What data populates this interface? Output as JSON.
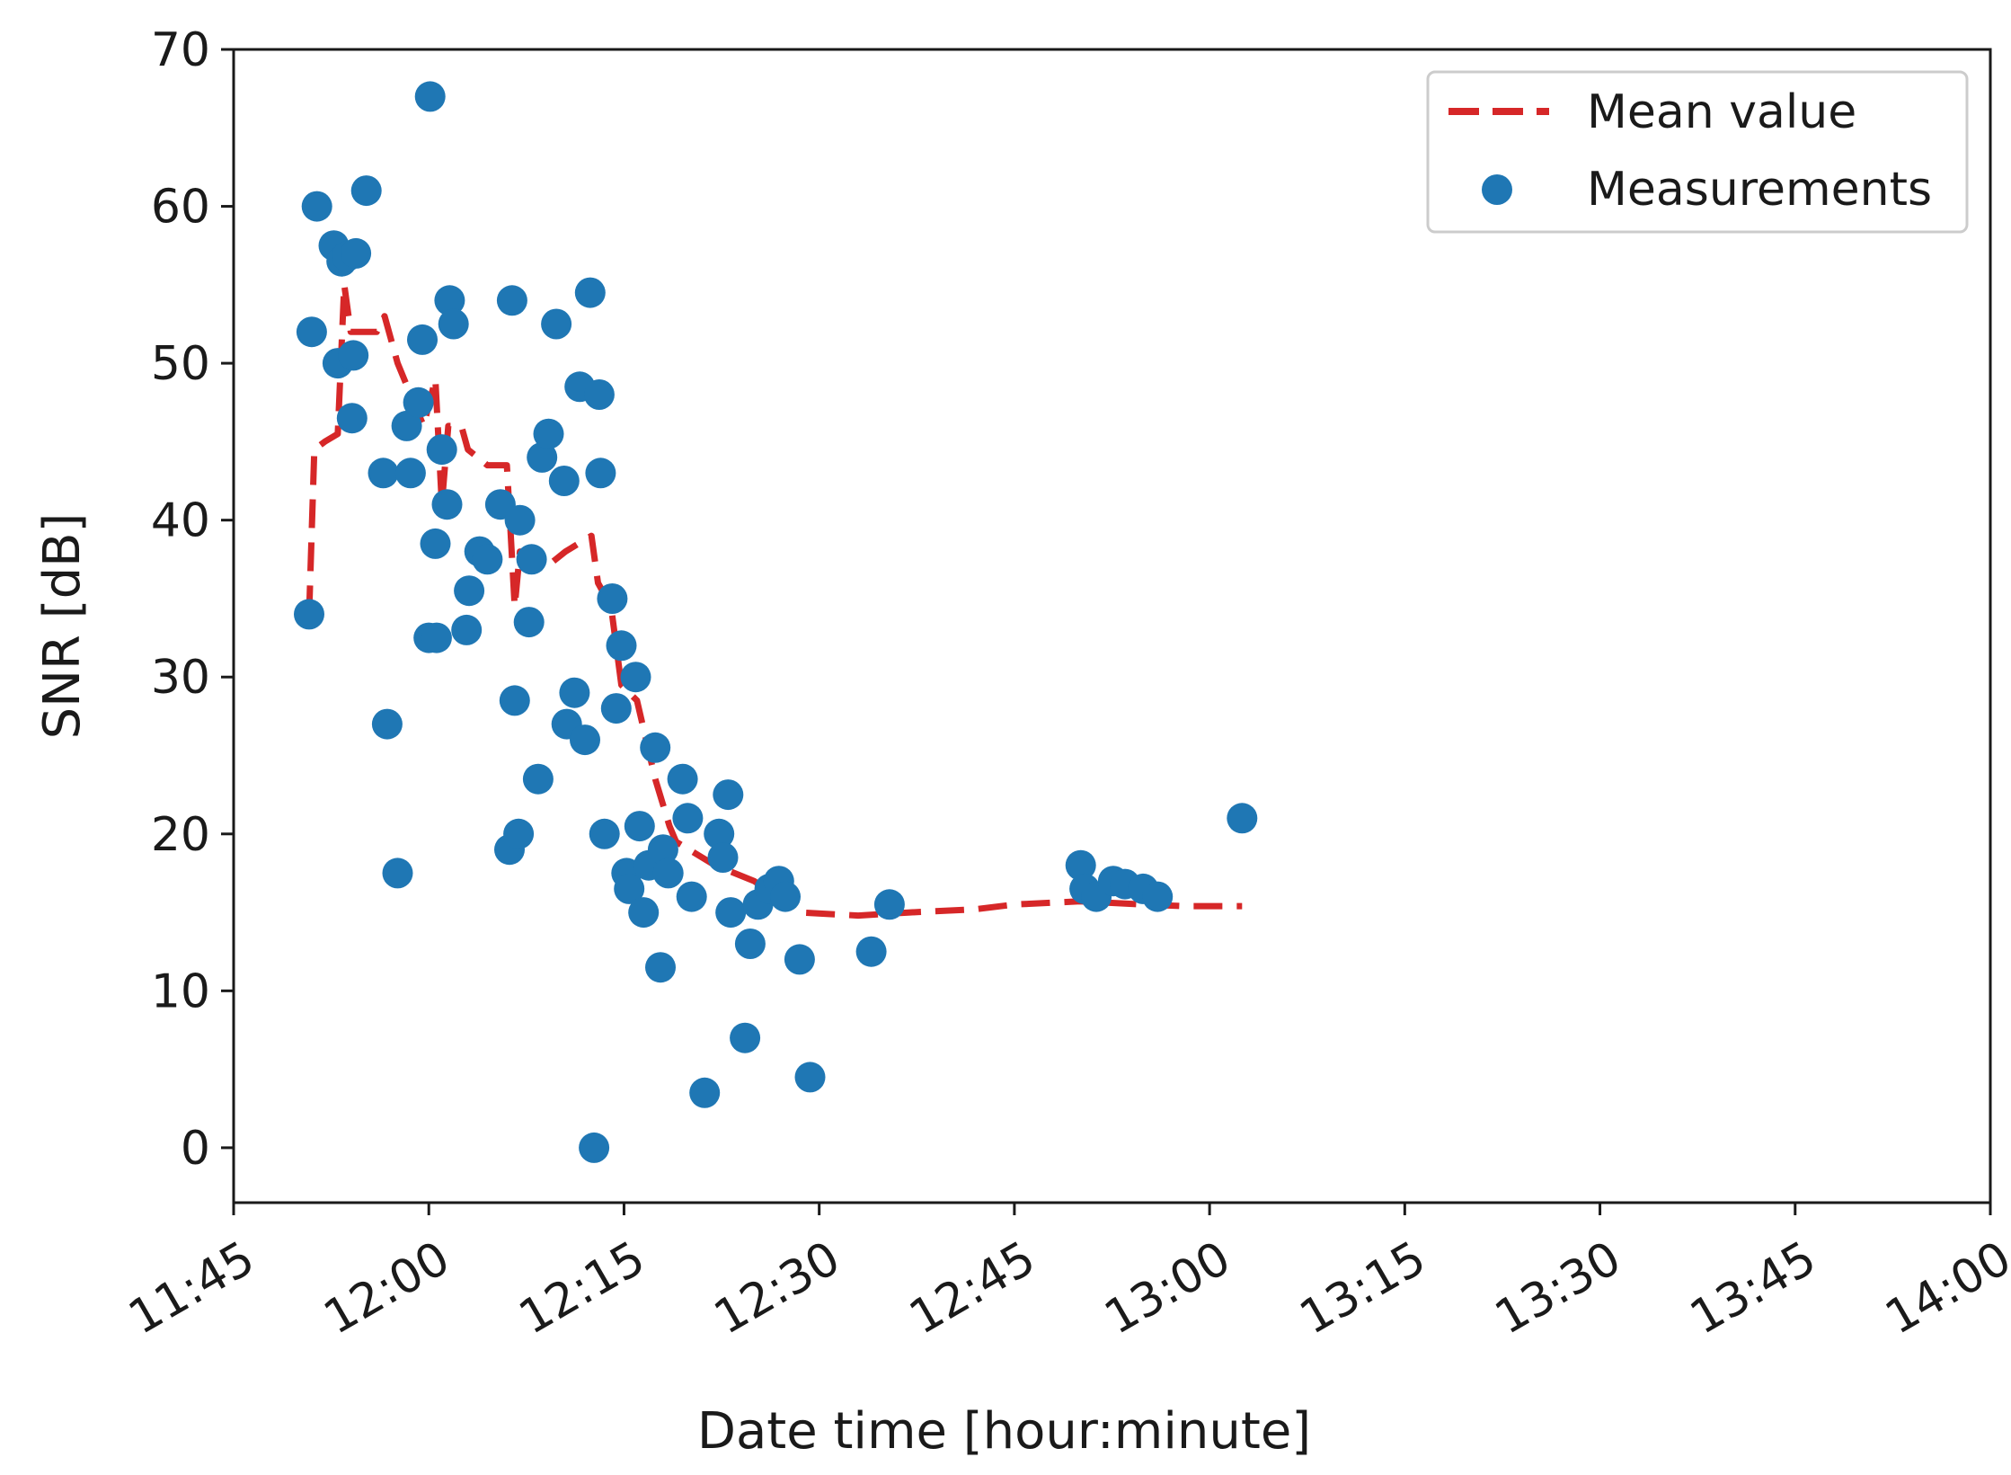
{
  "chart_data": {
    "type": "scatter",
    "title": "",
    "xlabel": "Date time [hour:minute]",
    "ylabel": "SNR [dB]",
    "x_units": "minutes since 11:45",
    "xlim": [
      0,
      135
    ],
    "ylim": [
      -3.5,
      70
    ],
    "x_ticks": [
      {
        "value": 0,
        "label": "11:45"
      },
      {
        "value": 15,
        "label": "12:00"
      },
      {
        "value": 30,
        "label": "12:15"
      },
      {
        "value": 45,
        "label": "12:30"
      },
      {
        "value": 60,
        "label": "12:45"
      },
      {
        "value": 75,
        "label": "13:00"
      },
      {
        "value": 90,
        "label": "13:15"
      },
      {
        "value": 105,
        "label": "13:30"
      },
      {
        "value": 120,
        "label": "13:45"
      },
      {
        "value": 135,
        "label": "14:00"
      }
    ],
    "y_ticks": [
      {
        "value": 0,
        "label": "0"
      },
      {
        "value": 10,
        "label": "10"
      },
      {
        "value": 20,
        "label": "20"
      },
      {
        "value": 30,
        "label": "30"
      },
      {
        "value": 40,
        "label": "40"
      },
      {
        "value": 50,
        "label": "50"
      },
      {
        "value": 60,
        "label": "60"
      },
      {
        "value": 70,
        "label": "70"
      }
    ],
    "legend": {
      "placement": "top-right",
      "entries": [
        {
          "label": "Mean value",
          "style": "dashed-line",
          "color": "#d62728"
        },
        {
          "label": "Measurements",
          "style": "marker",
          "color": "#1f77b4"
        }
      ]
    },
    "series": [
      {
        "name": "Measurements",
        "kind": "scatter",
        "color": "#1f77b4",
        "points": [
          [
            5.8,
            34
          ],
          [
            6.0,
            52
          ],
          [
            6.4,
            60
          ],
          [
            7.7,
            57.5
          ],
          [
            8.0,
            50
          ],
          [
            8.3,
            56.5
          ],
          [
            8.7,
            56.8
          ],
          [
            9.1,
            46.5
          ],
          [
            9.2,
            50.5
          ],
          [
            9.4,
            57
          ],
          [
            10.2,
            61
          ],
          [
            11.5,
            43
          ],
          [
            11.8,
            27
          ],
          [
            12.6,
            17.5
          ],
          [
            13.3,
            46
          ],
          [
            13.6,
            43
          ],
          [
            14.2,
            47.5
          ],
          [
            14.5,
            51.5
          ],
          [
            15.0,
            32.5
          ],
          [
            15.1,
            67
          ],
          [
            15.5,
            38.5
          ],
          [
            15.6,
            32.5
          ],
          [
            16.0,
            44.5
          ],
          [
            16.4,
            41
          ],
          [
            16.6,
            54
          ],
          [
            16.9,
            52.5
          ],
          [
            17.9,
            33
          ],
          [
            18.1,
            35.5
          ],
          [
            18.9,
            38
          ],
          [
            19.5,
            37.5
          ],
          [
            20.5,
            41
          ],
          [
            21.2,
            19
          ],
          [
            21.4,
            54
          ],
          [
            21.6,
            28.5
          ],
          [
            21.9,
            20
          ],
          [
            22.0,
            40
          ],
          [
            22.7,
            33.5
          ],
          [
            22.9,
            37.5
          ],
          [
            23.4,
            23.5
          ],
          [
            23.7,
            44
          ],
          [
            24.2,
            45.5
          ],
          [
            24.8,
            52.5
          ],
          [
            25.4,
            42.5
          ],
          [
            25.6,
            27
          ],
          [
            26.2,
            29
          ],
          [
            26.6,
            48.5
          ],
          [
            27.0,
            26
          ],
          [
            27.4,
            54.5
          ],
          [
            27.7,
            0
          ],
          [
            28.1,
            48
          ],
          [
            28.2,
            43
          ],
          [
            28.5,
            20
          ],
          [
            29.1,
            35
          ],
          [
            29.4,
            28
          ],
          [
            29.8,
            32
          ],
          [
            30.2,
            17.5
          ],
          [
            30.4,
            16.5
          ],
          [
            30.9,
            30
          ],
          [
            31.2,
            20.5
          ],
          [
            31.5,
            15
          ],
          [
            31.9,
            18
          ],
          [
            32.4,
            25.5
          ],
          [
            32.8,
            11.5
          ],
          [
            33.0,
            19
          ],
          [
            33.4,
            17.5
          ],
          [
            34.5,
            23.5
          ],
          [
            34.9,
            21
          ],
          [
            35.2,
            16
          ],
          [
            36.2,
            3.5
          ],
          [
            37.3,
            20
          ],
          [
            37.6,
            18.5
          ],
          [
            38.0,
            22.5
          ],
          [
            38.2,
            15
          ],
          [
            39.3,
            7
          ],
          [
            39.7,
            13
          ],
          [
            40.3,
            15.5
          ],
          [
            41.2,
            16.5
          ],
          [
            41.9,
            17
          ],
          [
            42.4,
            16
          ],
          [
            43.5,
            12
          ],
          [
            44.3,
            4.5
          ],
          [
            49.0,
            12.5
          ],
          [
            50.4,
            15.5
          ],
          [
            65.1,
            18
          ],
          [
            65.4,
            16.5
          ],
          [
            66.3,
            16
          ],
          [
            67.6,
            17
          ],
          [
            68.5,
            16.8
          ],
          [
            69.9,
            16.5
          ],
          [
            71.0,
            16
          ],
          [
            77.5,
            21
          ]
        ]
      },
      {
        "name": "Mean value",
        "kind": "line",
        "style": "dashed",
        "color": "#d62728",
        "points": [
          [
            5.8,
            34
          ],
          [
            6.2,
            44.5
          ],
          [
            7.0,
            45
          ],
          [
            8.0,
            45.5
          ],
          [
            8.5,
            55
          ],
          [
            9.0,
            52
          ],
          [
            11.0,
            52
          ],
          [
            11.6,
            53
          ],
          [
            12.6,
            50
          ],
          [
            13.6,
            48
          ],
          [
            14.6,
            46
          ],
          [
            15.5,
            49
          ],
          [
            16.0,
            41
          ],
          [
            16.5,
            46
          ],
          [
            17.5,
            46
          ],
          [
            18.0,
            44.5
          ],
          [
            19.5,
            43.5
          ],
          [
            21.0,
            43.5
          ],
          [
            21.6,
            34.5
          ],
          [
            22.0,
            38
          ],
          [
            24.0,
            37
          ],
          [
            25.5,
            38
          ],
          [
            27.5,
            39
          ],
          [
            28.0,
            36
          ],
          [
            29.0,
            34.5
          ],
          [
            29.8,
            29.5
          ],
          [
            31.0,
            28.5
          ],
          [
            32.4,
            23.5
          ],
          [
            33.5,
            20.5
          ],
          [
            34.0,
            19.5
          ],
          [
            37.0,
            18
          ],
          [
            40.0,
            17
          ],
          [
            43.5,
            15
          ],
          [
            48.0,
            14.8
          ],
          [
            52.0,
            15
          ],
          [
            57.0,
            15.2
          ],
          [
            60.0,
            15.5
          ],
          [
            65.0,
            15.7
          ],
          [
            70.0,
            15.5
          ],
          [
            73.0,
            15.4
          ],
          [
            77.5,
            15.4
          ]
        ]
      }
    ]
  }
}
